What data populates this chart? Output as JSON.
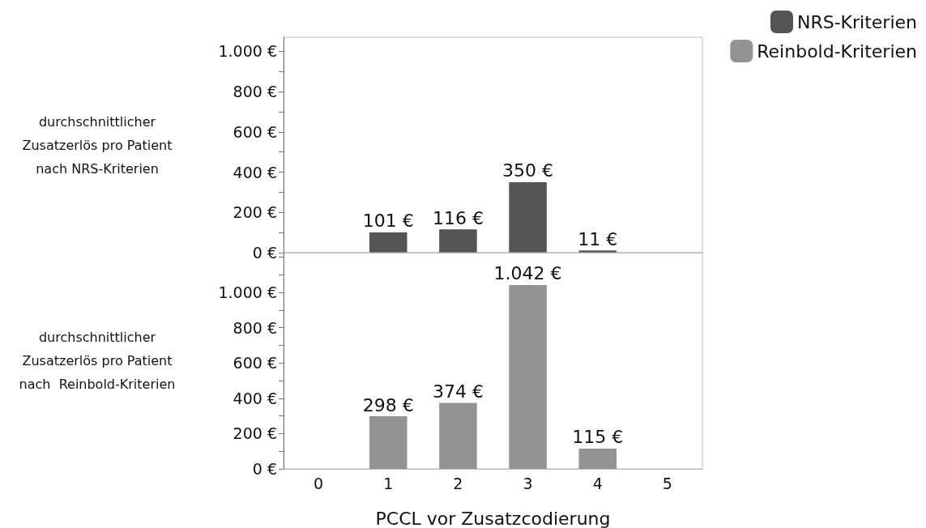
{
  "chart_data": [
    {
      "type": "bar",
      "categories": [
        "0",
        "1",
        "2",
        "3",
        "4",
        "5"
      ],
      "ylabel": "durchschnittlicher\nZusatzerlös pro Patient\nnach NRS-Kriterien",
      "series": [
        {
          "name": "NRS-Kriterien",
          "color": "#545454",
          "values": [
            null,
            101,
            116,
            350,
            11,
            null
          ],
          "value_labels": [
            null,
            "101 €",
            "116 €",
            "350 €",
            "11 €",
            null
          ]
        }
      ],
      "ylim": [
        0,
        1070
      ],
      "yticks": [
        {
          "value": 0,
          "label": "0 €"
        },
        {
          "value": 100,
          "label": null
        },
        {
          "value": 200,
          "label": "200 €"
        },
        {
          "value": 300,
          "label": null
        },
        {
          "value": 400,
          "label": "400 €"
        },
        {
          "value": 500,
          "label": null
        },
        {
          "value": 600,
          "label": "600 €"
        },
        {
          "value": 700,
          "label": null
        },
        {
          "value": 800,
          "label": "800 €"
        },
        {
          "value": 900,
          "label": null
        },
        {
          "value": 1000,
          "label": "1.000 €"
        }
      ],
      "tick_labels": "y",
      "grid": false,
      "legend": "top right"
    },
    {
      "type": "bar",
      "categories": [
        "0",
        "1",
        "2",
        "3",
        "4",
        "5"
      ],
      "xlabel": "PCCL vor Zusatzcodierung",
      "ylabel": "durchschnittlicher\nZusatzerlös pro Patient\nnach  Reinbold-Kriterien",
      "series": [
        {
          "name": "Reinbold-Kriterien",
          "color": "#939393",
          "values": [
            null,
            298,
            374,
            1042,
            115,
            null
          ],
          "value_labels": [
            null,
            "298 €",
            "374 €",
            "1.042 €",
            "115 €",
            null
          ]
        }
      ],
      "ylim": [
        0,
        1225
      ],
      "yticks": [
        {
          "value": 0,
          "label": "0 €"
        },
        {
          "value": 100,
          "label": null
        },
        {
          "value": 200,
          "label": "200 €"
        },
        {
          "value": 300,
          "label": null
        },
        {
          "value": 400,
          "label": "400 €"
        },
        {
          "value": 500,
          "label": null
        },
        {
          "value": 600,
          "label": "600 €"
        },
        {
          "value": 700,
          "label": null
        },
        {
          "value": 800,
          "label": "800 €"
        },
        {
          "value": 900,
          "label": null
        },
        {
          "value": 1000,
          "label": "1.000 €"
        },
        {
          "value": 1100,
          "label": null
        },
        {
          "value": 1200,
          "label": null
        }
      ],
      "grid": false,
      "legend": "top right"
    }
  ]
}
